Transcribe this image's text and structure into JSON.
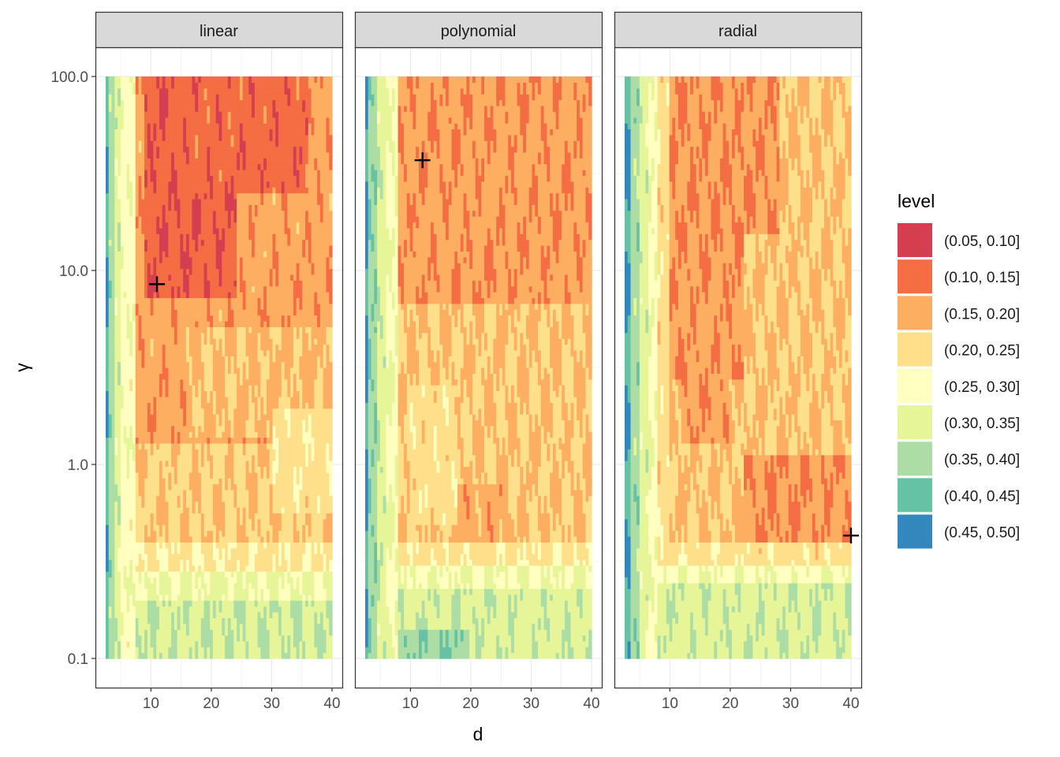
{
  "chart_data": {
    "type": "heatmap",
    "subtype": "filled-contour",
    "facets": [
      "linear",
      "polynomial",
      "radial"
    ],
    "xlabel": "d",
    "ylabel": "γ",
    "xlim": [
      2,
      42
    ],
    "ylim": [
      0.1,
      100
    ],
    "y_scale": "log10",
    "x_ticks": [
      10,
      20,
      30,
      40
    ],
    "y_ticks": [
      0.1,
      1,
      10,
      100
    ],
    "y_tick_labels": [
      "0.1",
      "1.0",
      "10.0",
      "100.0"
    ],
    "legend": {
      "title": "level",
      "position": "right",
      "levels": [
        {
          "label": "(0.05, 0.10]",
          "color": "#D53E4F"
        },
        {
          "label": "(0.10, 0.15]",
          "color": "#F46D43"
        },
        {
          "label": "(0.15, 0.20]",
          "color": "#FDAE61"
        },
        {
          "label": "(0.20, 0.25]",
          "color": "#FEE08B"
        },
        {
          "label": "(0.25, 0.30]",
          "color": "#FFFFBF"
        },
        {
          "label": "(0.30, 0.35]",
          "color": "#E6F598"
        },
        {
          "label": "(0.35, 0.40]",
          "color": "#ABDDA4"
        },
        {
          "label": "(0.40, 0.45]",
          "color": "#66C2A5"
        },
        {
          "label": "(0.45, 0.50]",
          "color": "#3288BD"
        }
      ]
    },
    "optimum_markers": [
      {
        "facet": "linear",
        "d": 11,
        "gamma": 8.5
      },
      {
        "facet": "polynomial",
        "d": 12,
        "gamma": 37
      },
      {
        "facet": "radial",
        "d": 40,
        "gamma": 0.43
      }
    ]
  }
}
